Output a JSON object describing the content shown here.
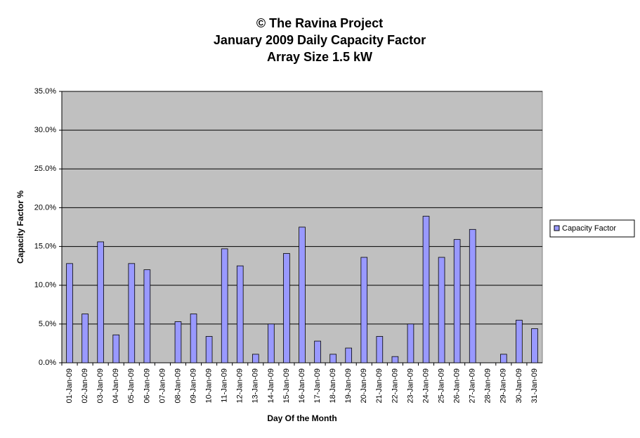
{
  "chart_data": {
    "type": "bar",
    "title": [
      "© The Ravina Project",
      "January 2009 Daily Capacity Factor",
      "Array Size 1.5 kW"
    ],
    "x_label": "Day Of the Month",
    "y_label": "Capacity Factor %",
    "categories": [
      "01-Jan-09",
      "02-Jan-09",
      "03-Jan-09",
      "04-Jan-09",
      "05-Jan-09",
      "06-Jan-09",
      "07-Jan-09",
      "08-Jan-09",
      "09-Jan-09",
      "10-Jan-09",
      "11-Jan-09",
      "12-Jan-09",
      "13-Jan-09",
      "14-Jan-09",
      "15-Jan-09",
      "16-Jan-09",
      "17-Jan-09",
      "18-Jan-09",
      "19-Jan-09",
      "20-Jan-09",
      "21-Jan-09",
      "22-Jan-09",
      "23-Jan-09",
      "24-Jan-09",
      "25-Jan-09",
      "26-Jan-09",
      "27-Jan-09",
      "28-Jan-09",
      "29-Jan-09",
      "30-Jan-09",
      "31-Jan-09"
    ],
    "series": [
      {
        "name": "Capacity Factor",
        "color": "#9999ff",
        "values": [
          12.8,
          6.3,
          15.6,
          3.6,
          12.8,
          12.0,
          0,
          5.3,
          6.3,
          3.4,
          14.7,
          12.5,
          1.1,
          5.0,
          14.1,
          17.5,
          2.8,
          1.1,
          1.9,
          13.6,
          3.4,
          0.8,
          5.0,
          18.9,
          13.6,
          15.9,
          17.2,
          0,
          1.1,
          5.5,
          4.4
        ]
      }
    ],
    "ylim": [
      0,
      35
    ],
    "yticks": [
      {
        "value": 0,
        "label": "0.0%"
      },
      {
        "value": 5,
        "label": "5.0%"
      },
      {
        "value": 10,
        "label": "10.0%"
      },
      {
        "value": 15,
        "label": "15.0%"
      },
      {
        "value": 20,
        "label": "20.0%"
      },
      {
        "value": 25,
        "label": "25.0%"
      },
      {
        "value": 30,
        "label": "30.0%"
      },
      {
        "value": 35,
        "label": "35.0%"
      }
    ],
    "grid": true,
    "plot_background": "#c0c0c0",
    "legend": "right"
  }
}
